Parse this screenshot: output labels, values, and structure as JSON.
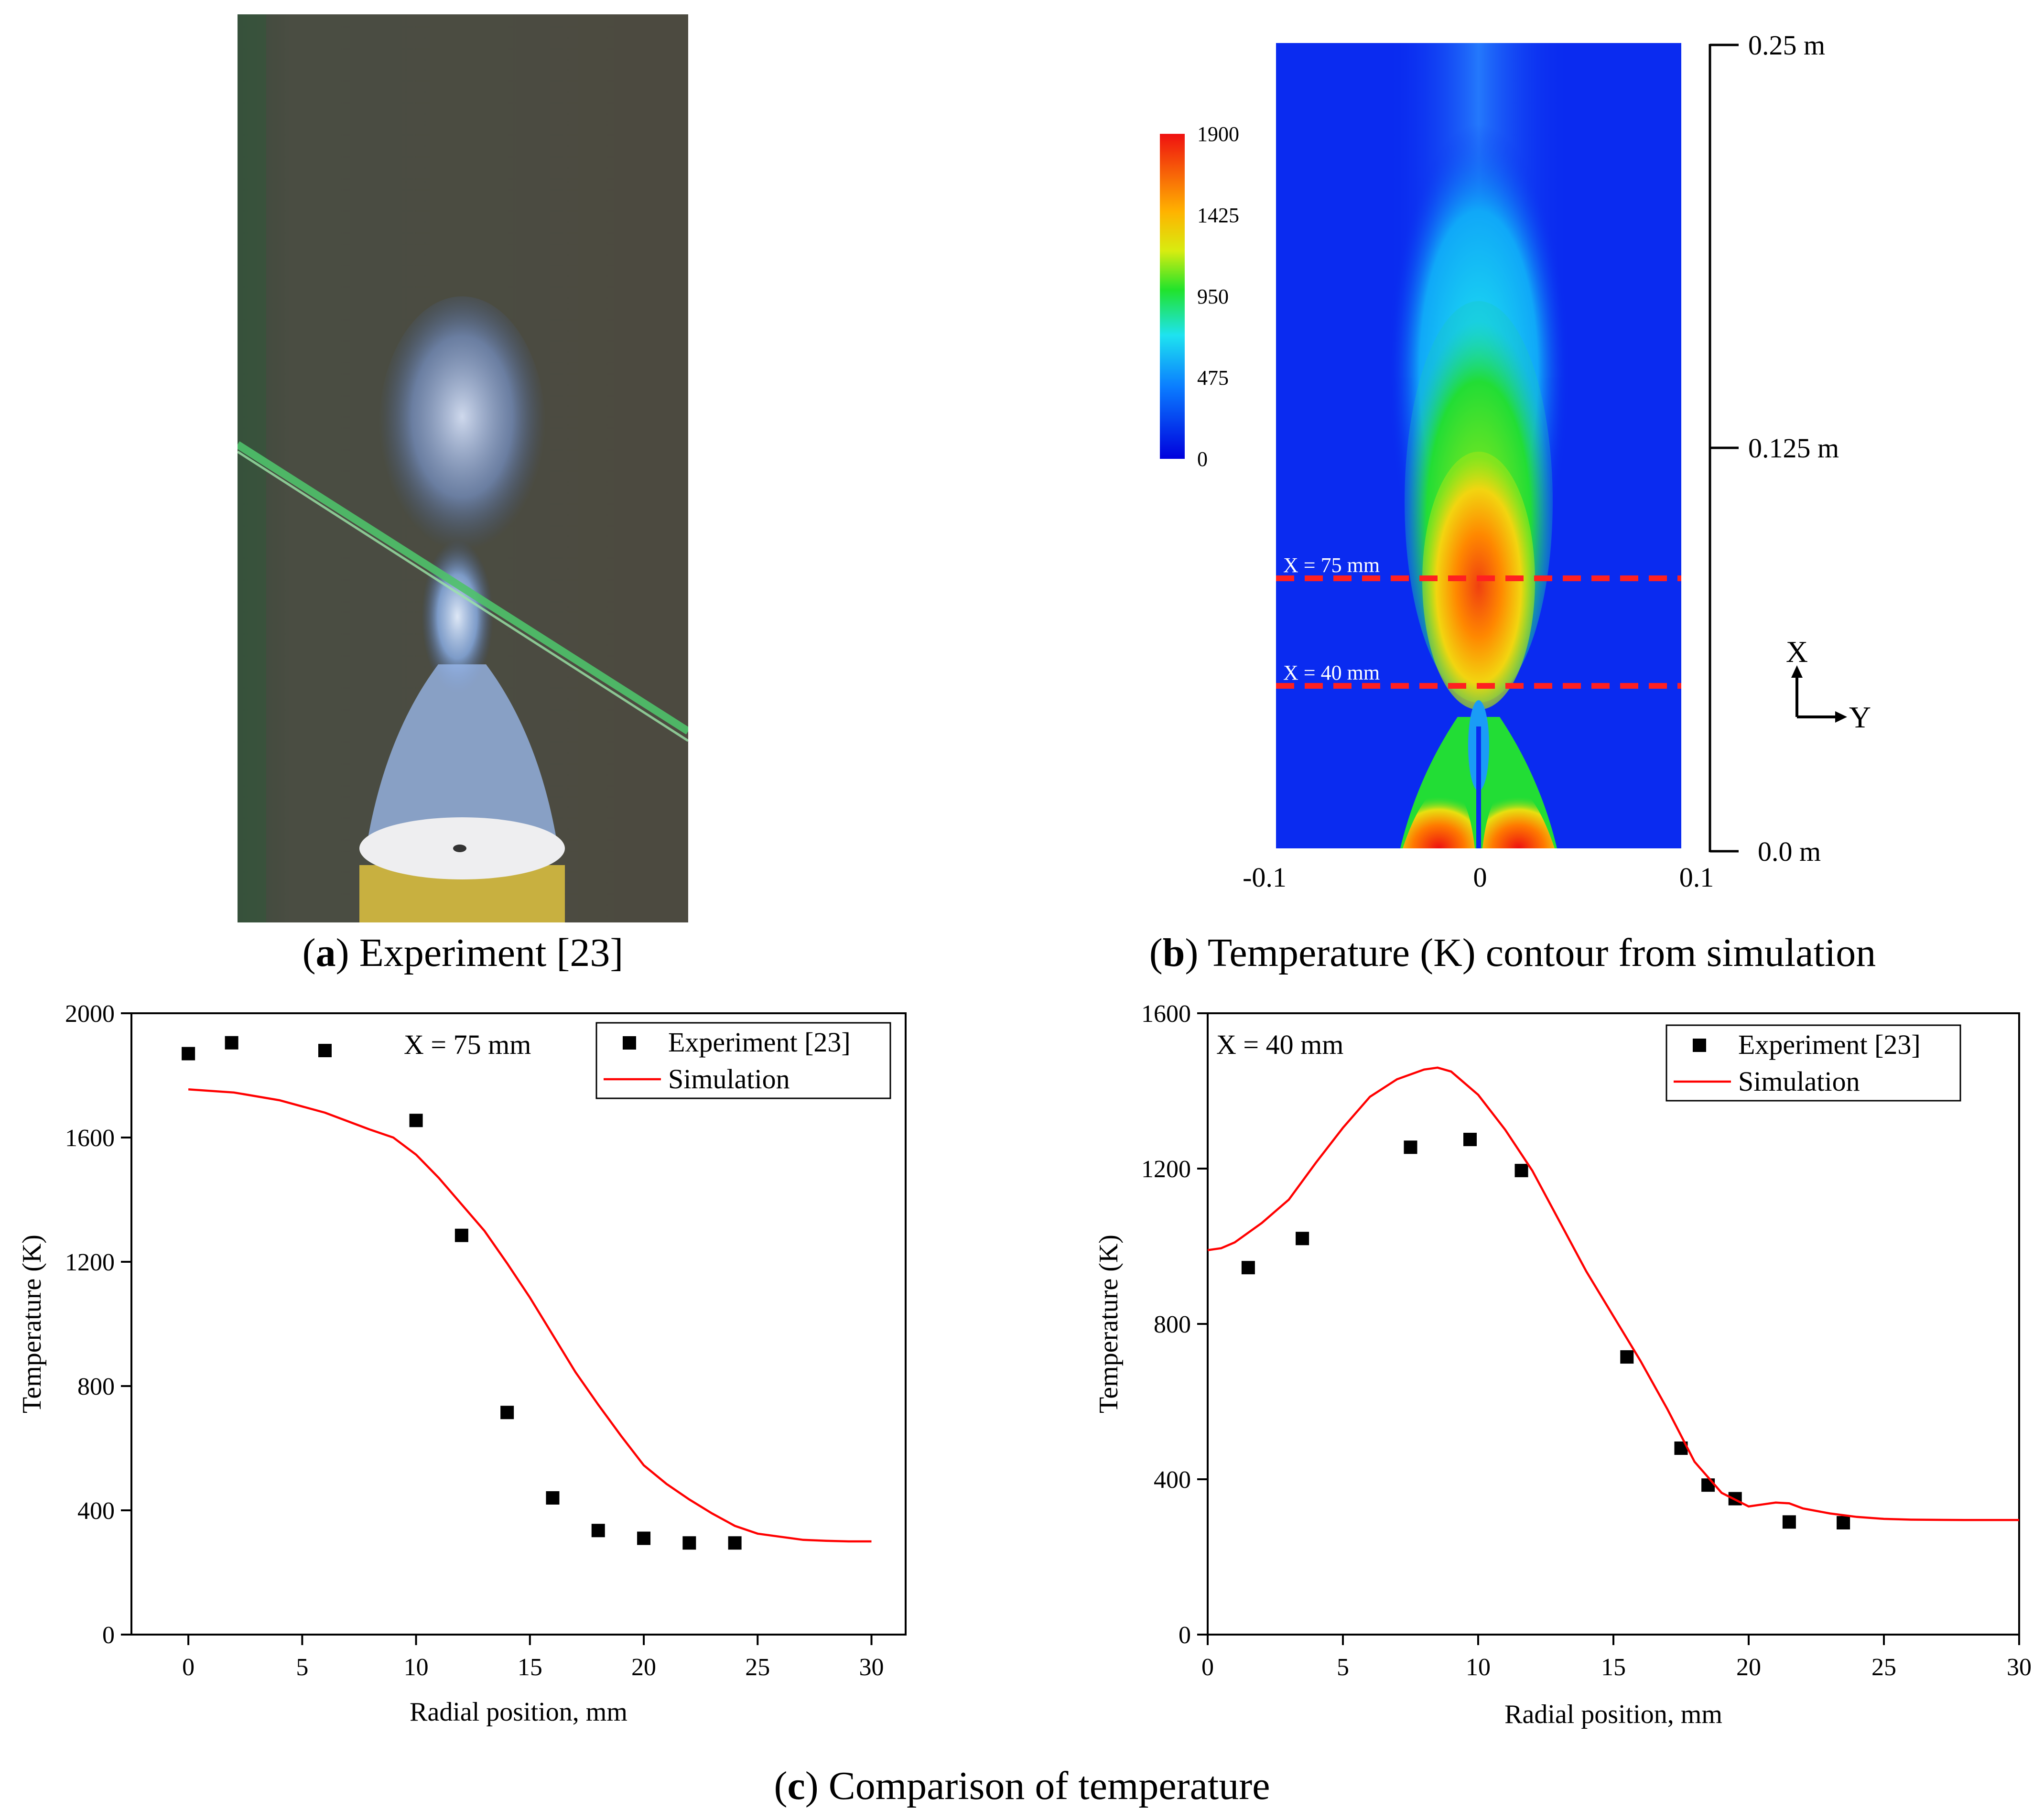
{
  "panels": {
    "a": {
      "letter": "a",
      "caption": ") Experiment [23]"
    },
    "b": {
      "letter": "b",
      "caption": ") Temperature (K) contour from simulation"
    },
    "c": {
      "letter": "c",
      "caption": ") Comparison of temperature"
    }
  },
  "contour": {
    "colorbar": {
      "ticks": [
        "1900",
        "1425",
        "950",
        "475",
        "0"
      ],
      "min": 0,
      "max": 1900
    },
    "scale": {
      "labels": [
        "0.25 m",
        "0.125 m",
        "0.0 m"
      ]
    },
    "x_ticks": [
      "-0.1",
      "0",
      "0.1"
    ],
    "lines": [
      {
        "label": "X = 75 mm"
      },
      {
        "label": "X = 40 mm"
      }
    ],
    "axes": {
      "x": "X",
      "y": "Y"
    },
    "colors": {
      "background": "#0a2bf0",
      "line": "#ff2020"
    }
  },
  "chart_data": [
    {
      "type": "scatter",
      "title": "X = 75 mm",
      "xlabel": "Radial position, mm",
      "ylabel": "Temperature (K)",
      "xlim": [
        -2.5,
        31.5
      ],
      "ylim": [
        0,
        2000
      ],
      "xticks": [
        0,
        5,
        10,
        15,
        20,
        25,
        30
      ],
      "yticks": [
        0,
        400,
        800,
        1200,
        1600,
        2000
      ],
      "legend": {
        "position": "top-right",
        "entries": [
          "Experiment [23]",
          "Simulation"
        ]
      },
      "series": [
        {
          "name": "Experiment [23]",
          "kind": "markers",
          "color": "#000000",
          "x": [
            0,
            1.9,
            6,
            10,
            12,
            14,
            16,
            18,
            20,
            22,
            24
          ],
          "y": [
            1870,
            1905,
            1880,
            1655,
            1285,
            715,
            440,
            335,
            310,
            295,
            295
          ]
        },
        {
          "name": "Simulation",
          "kind": "line",
          "color": "#ff0000",
          "x": [
            0,
            2,
            4,
            6,
            8,
            9,
            10,
            11,
            12,
            13,
            14,
            15,
            16,
            17,
            18,
            19,
            20,
            21,
            22,
            23,
            24,
            25,
            26,
            27,
            28,
            29,
            30
          ],
          "y": [
            1755,
            1745,
            1720,
            1680,
            1625,
            1600,
            1545,
            1470,
            1385,
            1300,
            1195,
            1085,
            965,
            845,
            740,
            640,
            545,
            485,
            435,
            390,
            350,
            325,
            315,
            305,
            302,
            300,
            300
          ]
        }
      ]
    },
    {
      "type": "scatter",
      "title": "X = 40 mm",
      "xlabel": "Radial position, mm",
      "ylabel": "Temperature (K)",
      "xlim": [
        0,
        30
      ],
      "ylim": [
        0,
        1600
      ],
      "xticks": [
        0,
        5,
        10,
        15,
        20,
        25,
        30
      ],
      "yticks": [
        0,
        400,
        800,
        1200,
        1600
      ],
      "legend": {
        "position": "top-right",
        "entries": [
          "Experiment [23]",
          "Simulation"
        ]
      },
      "series": [
        {
          "name": "Experiment [23]",
          "kind": "markers",
          "color": "#000000",
          "x": [
            1.5,
            3.5,
            7.5,
            9.7,
            11.6,
            15.5,
            17.5,
            18.5,
            19.5,
            21.5,
            23.5
          ],
          "y": [
            945,
            1020,
            1255,
            1275,
            1195,
            715,
            480,
            385,
            350,
            290,
            288
          ]
        },
        {
          "name": "Simulation",
          "kind": "line",
          "color": "#ff0000",
          "x": [
            0,
            0.5,
            1,
            2,
            3,
            4,
            5,
            6,
            7,
            8,
            8.5,
            9,
            10,
            11,
            12,
            13,
            14,
            15,
            16,
            17,
            18,
            19,
            20,
            20.5,
            21,
            21.5,
            22,
            23,
            24,
            25,
            26,
            28,
            30
          ],
          "y": [
            990,
            995,
            1010,
            1060,
            1120,
            1215,
            1305,
            1385,
            1430,
            1455,
            1460,
            1450,
            1390,
            1300,
            1195,
            1065,
            935,
            820,
            705,
            580,
            445,
            365,
            330,
            335,
            340,
            338,
            325,
            312,
            303,
            298,
            296,
            295,
            295
          ]
        }
      ]
    }
  ]
}
